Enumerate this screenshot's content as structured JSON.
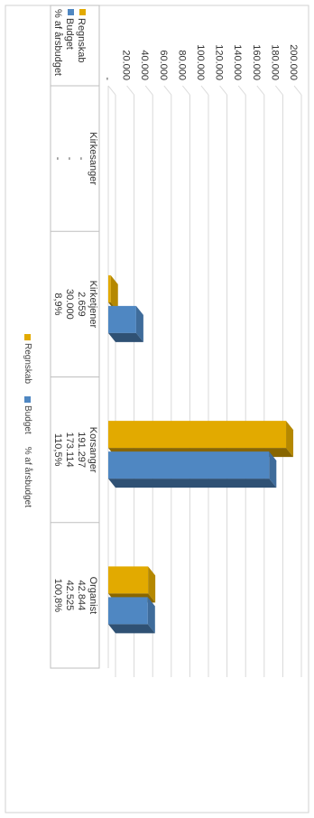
{
  "chart_data": {
    "type": "bar",
    "categories": [
      "Kirkesanger",
      "Kirketjener",
      "Korsanger",
      "Organist"
    ],
    "series": [
      {
        "name": "Regnskab",
        "values": [
          null,
          2659,
          191297,
          42844
        ],
        "color": "#E2AA00"
      },
      {
        "name": "Budget",
        "values": [
          null,
          30000,
          173114,
          42525
        ],
        "color": "#4F87C2"
      }
    ],
    "ratio": {
      "name": "% af årsbudget",
      "values": [
        "-",
        "8,9%",
        "110,5%",
        "100,8%"
      ]
    },
    "ylim": [
      0,
      200000
    ],
    "yticks": [
      0,
      20000,
      40000,
      60000,
      80000,
      100000,
      120000,
      140000,
      160000,
      180000,
      200000
    ],
    "ytick_labels": [
      "-",
      "20.000",
      "40.000",
      "60.000",
      "80.000",
      "100.000",
      "120.000",
      "140.000",
      "160.000",
      "180.000",
      "200.000"
    ],
    "table": {
      "rows": [
        {
          "label": "Regnskab",
          "cells": [
            "-",
            "2.659",
            "191.297",
            "42.844"
          ]
        },
        {
          "label": "Budget",
          "cells": [
            "-",
            "30.000",
            "173.114",
            "42.525"
          ]
        },
        {
          "label": "% af årsbudget",
          "cells": [
            "-",
            "8,9%",
            "110,5%",
            "100,8%"
          ]
        }
      ]
    },
    "legend": {
      "position": "bottom",
      "items": [
        "Regnskab",
        "Budget",
        "% af årsbudget"
      ]
    },
    "grid": true,
    "style": "3d-clustered-bar"
  }
}
